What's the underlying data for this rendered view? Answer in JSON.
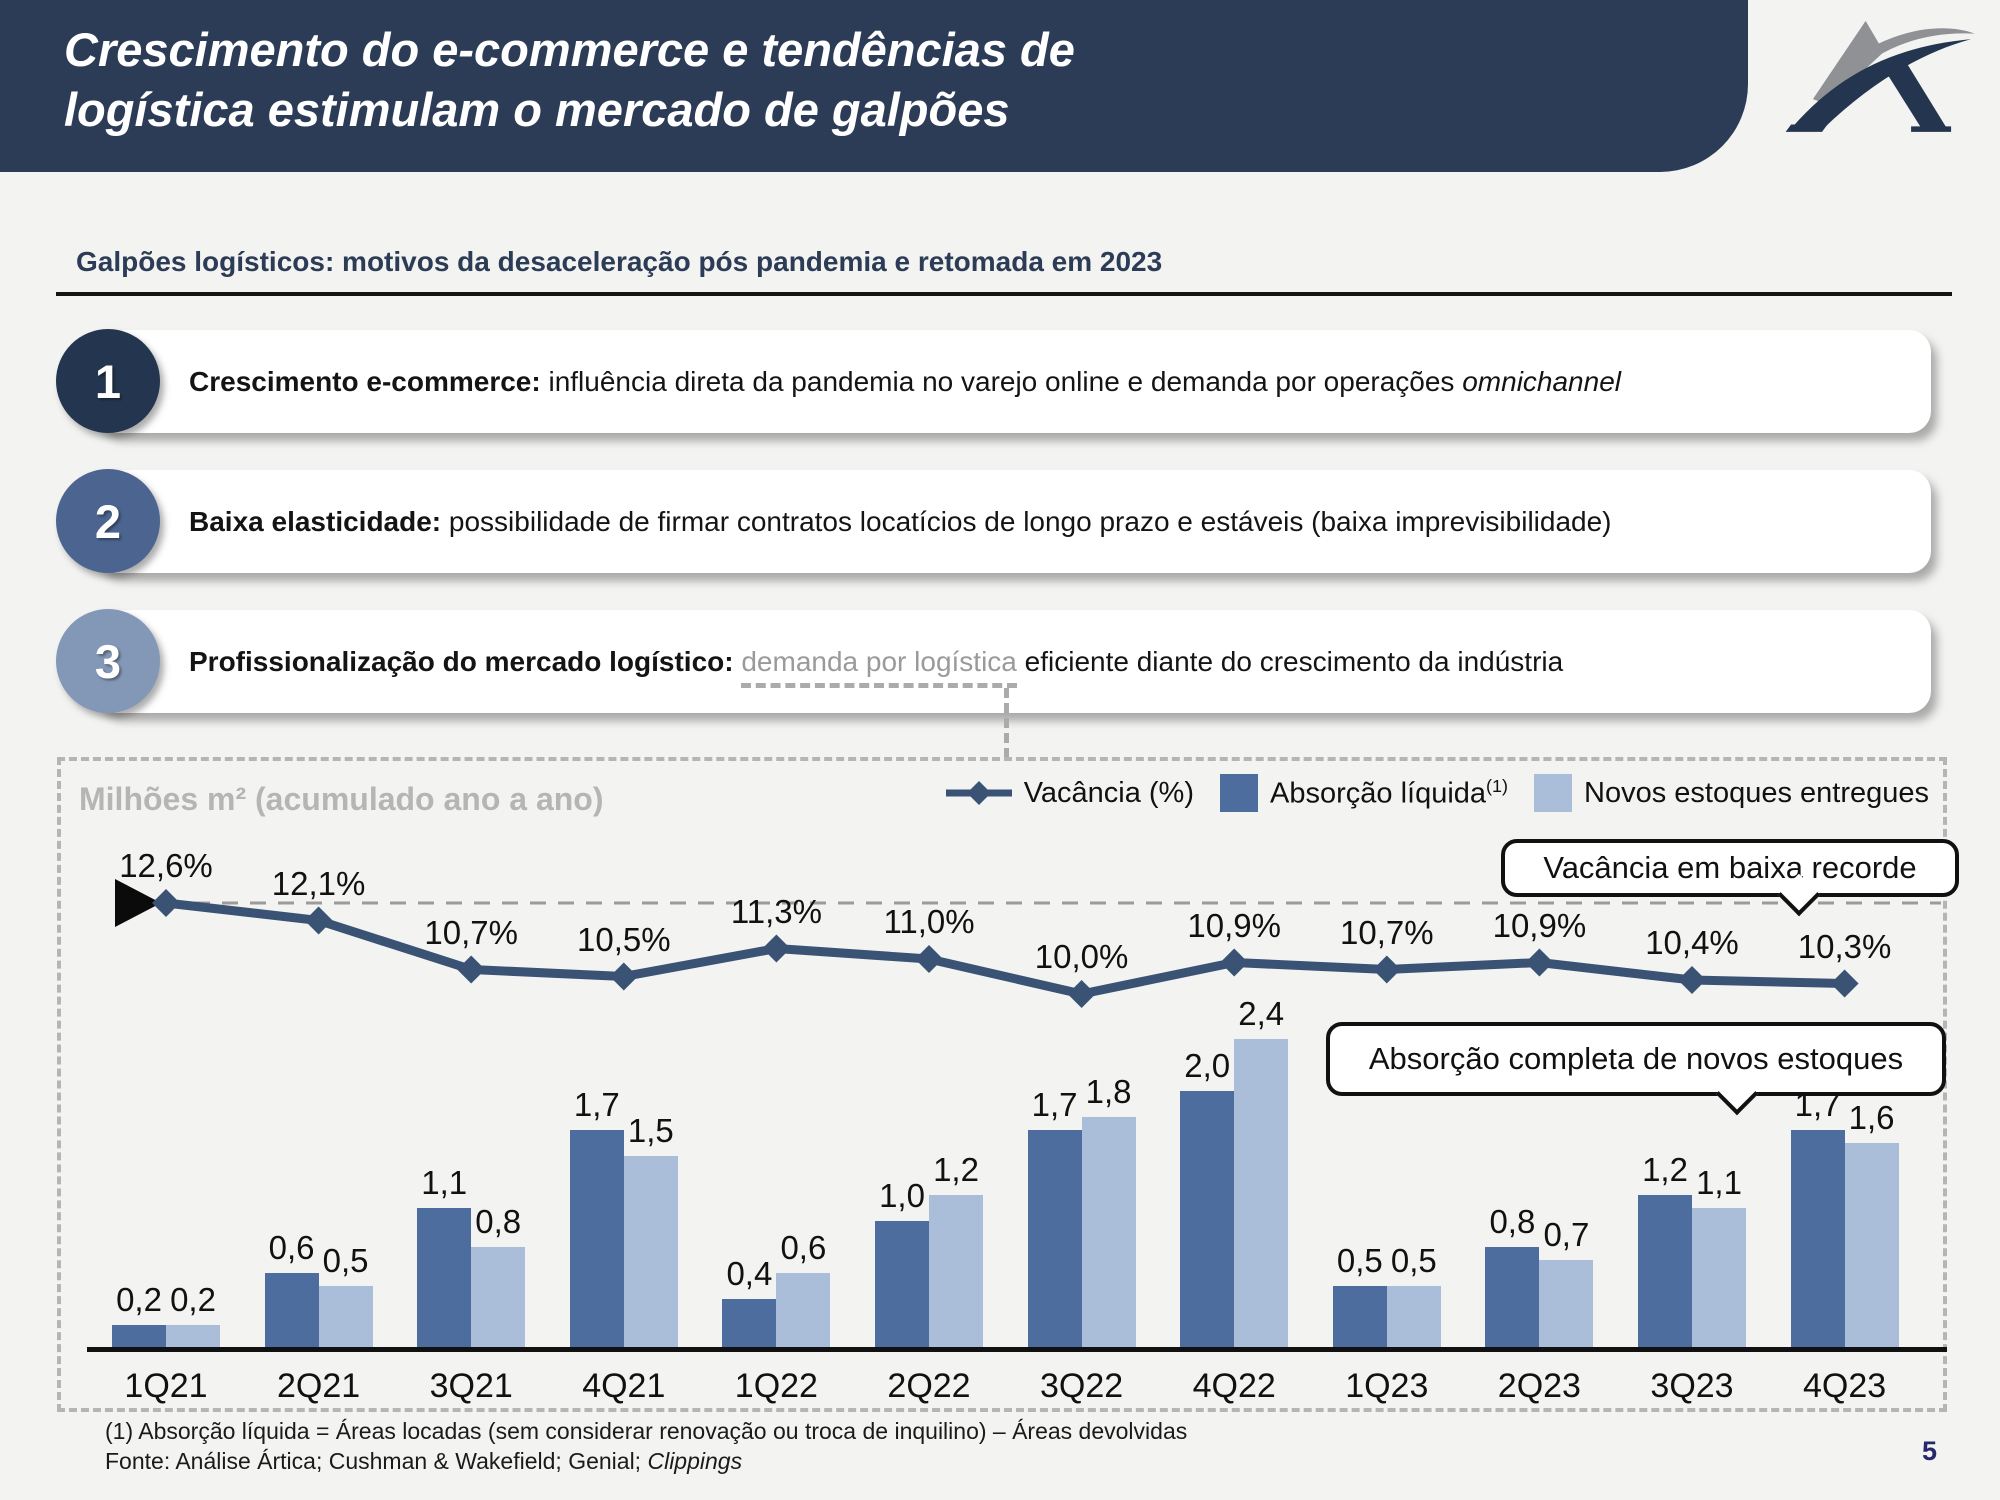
{
  "slide": {
    "title_lines": [
      "Crescimento do e-commerce e tendências de",
      "logística estimulam o mercado de galpões"
    ],
    "section_heading": "Galpões logísticos: motivos da desaceleração pós pandemia e retomada em 2023",
    "page_number": "5",
    "colors": {
      "header_navy": "#2d3c56"
    }
  },
  "items": [
    {
      "number": "1",
      "bold": "Crescimento e-commerce:",
      "text": " influência direta da pandemia no varejo online e demanda por operações ",
      "italic": "omnichannel",
      "circle_color": "#24364f"
    },
    {
      "number": "2",
      "bold": "Baixa elasticidade:",
      "text": " possibilidade de firmar contratos locatícios de longo prazo e estáveis (baixa imprevisibilidade)",
      "circle_color": "#4b6590"
    },
    {
      "number": "3",
      "bold": "Profissionalização do mercado logístico:",
      "gray": "demanda por logística",
      "text": " eficiente diante do crescimento da indústria",
      "circle_color": "#8397b6"
    }
  ],
  "chart_data": {
    "type": "combo-bar-line",
    "unit_label": "Milhões m² (acumulado ano a ano)",
    "categories": [
      "1Q21",
      "2Q21",
      "3Q21",
      "4Q21",
      "1Q22",
      "2Q22",
      "3Q22",
      "4Q22",
      "1Q23",
      "2Q23",
      "3Q23",
      "4Q23"
    ],
    "series": [
      {
        "name": "Vacância (%)",
        "type": "line",
        "color": "#3a5375",
        "values": [
          12.6,
          12.1,
          10.7,
          10.5,
          11.3,
          11.0,
          10.0,
          10.9,
          10.7,
          10.9,
          10.4,
          10.3
        ],
        "labels": [
          "12,6%",
          "12,1%",
          "10,7%",
          "10,5%",
          "11,3%",
          "11,0%",
          "10,0%",
          "10,9%",
          "10,7%",
          "10,9%",
          "10,4%",
          "10,3%"
        ]
      },
      {
        "name": "Absorção líquida",
        "superscript": "(1)",
        "type": "bar",
        "color": "#4d6d9e",
        "values": [
          0.2,
          0.6,
          1.1,
          1.7,
          0.4,
          1.0,
          1.7,
          2.0,
          0.5,
          0.8,
          1.2,
          1.7
        ],
        "labels": [
          "0,2",
          "0,6",
          "1,1",
          "1,7",
          "0,4",
          "1,0",
          "1,7",
          "2,0",
          "0,5",
          "0,8",
          "1,2",
          "1,7"
        ]
      },
      {
        "name": "Novos estoques entregues",
        "type": "bar",
        "color": "#aabdd9",
        "values": [
          0.2,
          0.5,
          0.8,
          1.5,
          0.6,
          1.2,
          1.8,
          2.4,
          0.5,
          0.7,
          1.1,
          1.6
        ],
        "labels": [
          "0,2",
          "0,5",
          "0,8",
          "1,5",
          "0,6",
          "1,2",
          "1,8",
          "2,4",
          "0,5",
          "0,7",
          "1,1",
          "1,6"
        ]
      }
    ],
    "ylim": [
      0,
      2.6
    ],
    "grid": false,
    "legend_position": "top-right",
    "reference_line": {
      "style": "dashed",
      "at_value": 12.6,
      "series": "Vacância (%)"
    },
    "callouts": [
      {
        "text": "Vacância em baixa recorde"
      },
      {
        "text": "Absorção completa de novos estoques"
      }
    ]
  },
  "footnotes": {
    "note1": "(1) Absorção líquida = Áreas locadas (sem considerar renovação ou troca de inquilino) – Áreas devolvidas",
    "source_prefix": "Fonte: Análise Ártica; Cushman & Wakefield; Genial; ",
    "source_italic": "Clippings"
  }
}
